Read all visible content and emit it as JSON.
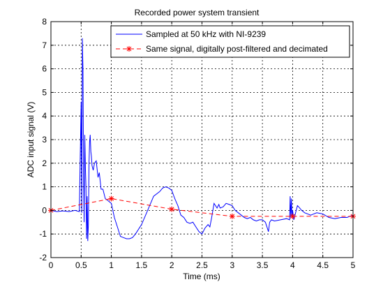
{
  "chart_data": {
    "type": "line",
    "title": "Recorded power system transient",
    "xlabel": "Time (ms)",
    "ylabel": "ADC input signal (V)",
    "xlim": [
      0,
      5
    ],
    "ylim": [
      -2,
      8
    ],
    "xticks": [
      0,
      0.5,
      1,
      1.5,
      2,
      2.5,
      3,
      3.5,
      4,
      4.5,
      5
    ],
    "xtick_labels": [
      "0",
      "0.5",
      "1",
      "1.5",
      "2",
      "2.5",
      "3",
      "3.5",
      "4",
      "4.5",
      "5"
    ],
    "yticks": [
      -2,
      -1,
      0,
      1,
      2,
      3,
      4,
      5,
      6,
      7,
      8
    ],
    "ytick_labels": [
      "-2",
      "-1",
      "0",
      "1",
      "2",
      "3",
      "4",
      "5",
      "6",
      "7",
      "8"
    ],
    "grid": true,
    "legend_position": "top-right",
    "series": [
      {
        "name": "Sampled at 50 kHz with NI-9239",
        "color": "#0000ff",
        "style": "solid",
        "marker": "none",
        "x": [
          0,
          0.1,
          0.2,
          0.3,
          0.4,
          0.47,
          0.5,
          0.51,
          0.52,
          0.53,
          0.54,
          0.55,
          0.56,
          0.57,
          0.58,
          0.59,
          0.6,
          0.61,
          0.62,
          0.63,
          0.64,
          0.65,
          0.66,
          0.67,
          0.68,
          0.7,
          0.72,
          0.75,
          0.78,
          0.8,
          0.83,
          0.86,
          0.9,
          0.95,
          1.0,
          1.05,
          1.1,
          1.15,
          1.2,
          1.25,
          1.3,
          1.35,
          1.4,
          1.5,
          1.6,
          1.7,
          1.8,
          1.85,
          1.9,
          1.95,
          2.0,
          2.05,
          2.1,
          2.15,
          2.2,
          2.25,
          2.3,
          2.35,
          2.4,
          2.45,
          2.5,
          2.55,
          2.6,
          2.63,
          2.66,
          2.7,
          2.75,
          2.78,
          2.8,
          2.85,
          2.9,
          2.95,
          3.0,
          3.05,
          3.1,
          3.15,
          3.2,
          3.25,
          3.3,
          3.35,
          3.4,
          3.45,
          3.5,
          3.55,
          3.6,
          3.62,
          3.65,
          3.7,
          3.8,
          3.9,
          3.95,
          3.96,
          3.97,
          3.98,
          3.99,
          4.0,
          4.02,
          4.05,
          4.08,
          4.1,
          4.15,
          4.2,
          4.3,
          4.4,
          4.5,
          4.6,
          4.7,
          4.8,
          4.9,
          5.0
        ],
        "y": [
          0.0,
          -0.05,
          -0.02,
          -0.05,
          0.0,
          -0.05,
          4.6,
          -0.1,
          7.3,
          6.0,
          1.5,
          -0.5,
          3.2,
          1.8,
          1.0,
          -1.2,
          0.6,
          -1.3,
          -0.6,
          2.0,
          2.9,
          3.2,
          2.5,
          2.3,
          1.9,
          1.7,
          2.0,
          2.1,
          1.4,
          1.6,
          0.9,
          0.9,
          0.5,
          0.4,
          0.3,
          -0.3,
          -0.7,
          -1.1,
          -1.15,
          -1.2,
          -1.2,
          -1.15,
          -1.0,
          -0.6,
          0.0,
          0.6,
          0.8,
          0.95,
          1.0,
          0.95,
          0.85,
          0.5,
          0.2,
          -0.2,
          -0.3,
          -0.5,
          -0.55,
          -0.5,
          -0.7,
          -0.9,
          -1.0,
          -0.75,
          -0.6,
          -0.7,
          -0.3,
          0.3,
          0.1,
          0.25,
          0.1,
          0.15,
          0.3,
          0.25,
          0.2,
          0.0,
          -0.1,
          -0.2,
          -0.3,
          -0.35,
          -0.3,
          -0.4,
          -0.45,
          -0.4,
          -0.4,
          -0.5,
          -0.9,
          -0.5,
          -0.4,
          -0.45,
          -0.4,
          -0.35,
          -0.4,
          0.6,
          -0.3,
          0.5,
          -0.2,
          0.0,
          -0.4,
          -0.1,
          0.2,
          0.15,
          0.0,
          -0.1,
          -0.2,
          -0.1,
          -0.15,
          -0.3,
          -0.35,
          -0.3,
          -0.3,
          -0.2
        ]
      },
      {
        "name": "Same signal, digitally post-filtered and decimated",
        "color": "#ff0000",
        "style": "dashed",
        "marker": "*",
        "x": [
          0,
          1,
          2,
          3,
          4,
          5
        ],
        "y": [
          0.0,
          0.5,
          0.05,
          -0.25,
          -0.25,
          -0.25
        ]
      }
    ]
  }
}
